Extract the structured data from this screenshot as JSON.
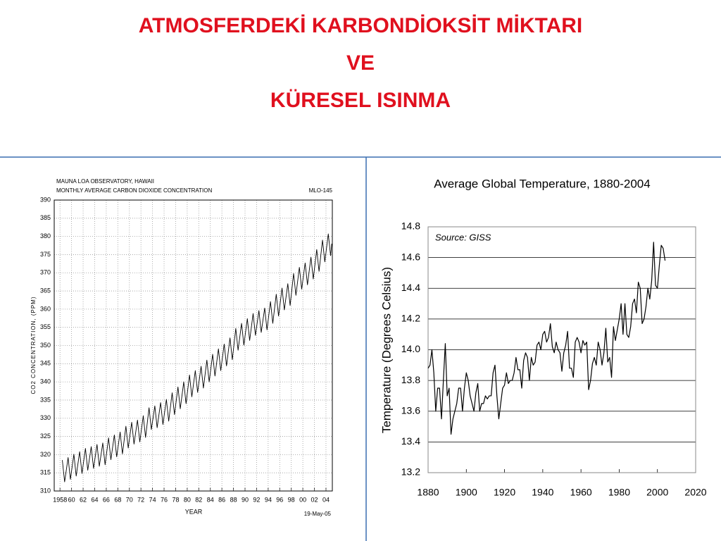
{
  "title": [
    "ATMOSFERDEKİ KARBONDİOKSİT MİKTARI",
    "VE",
    "KÜRESEL ISINMA"
  ],
  "chart_data": [
    {
      "type": "line",
      "title": "MAUNA LOA OBSERVATORY, HAWAII",
      "subtitle": "MONTHLY AVERAGE CARBON DIOXIDE CONCENTRATION",
      "annotations": [
        "MLO-145",
        "19-May-05"
      ],
      "xlabel": "YEAR",
      "ylabel": "CO2 CONCENTRATION, (PPM)",
      "color": "#000000",
      "grid": true,
      "xlim": [
        1957,
        2005.1
      ],
      "ylim": [
        310,
        390
      ],
      "yticks": [
        310,
        315,
        320,
        325,
        330,
        335,
        340,
        345,
        350,
        355,
        360,
        365,
        370,
        375,
        380,
        385,
        390
      ],
      "xticks": [
        1958,
        {
          "value": 1960,
          "label": "60"
        },
        {
          "value": 1962,
          "label": "62"
        },
        {
          "value": 1964,
          "label": "64"
        },
        {
          "value": 1966,
          "label": "66"
        },
        {
          "value": 1968,
          "label": "68"
        },
        {
          "value": 1970,
          "label": "70"
        },
        {
          "value": 1972,
          "label": "72"
        },
        {
          "value": 1974,
          "label": "74"
        },
        {
          "value": 1976,
          "label": "76"
        },
        {
          "value": 1978,
          "label": "78"
        },
        {
          "value": 1980,
          "label": "80"
        },
        {
          "value": 1982,
          "label": "82"
        },
        {
          "value": 1984,
          "label": "84"
        },
        {
          "value": 1986,
          "label": "86"
        },
        {
          "value": 1988,
          "label": "88"
        },
        {
          "value": 1990,
          "label": "90"
        },
        {
          "value": 1992,
          "label": "92"
        },
        {
          "value": 1994,
          "label": "94"
        },
        {
          "value": 1996,
          "label": "96"
        },
        {
          "value": 1998,
          "label": "98"
        },
        {
          "value": 2000,
          "label": "00"
        },
        {
          "value": 2002,
          "label": "02"
        },
        {
          "value": 2004,
          "label": "04"
        }
      ],
      "x": [
        1958.4,
        1958.8,
        1959.4,
        1959.8,
        1960.4,
        1960.8,
        1961.4,
        1961.8,
        1962.4,
        1962.8,
        1963.4,
        1963.8,
        1964.4,
        1964.8,
        1965.4,
        1965.8,
        1966.4,
        1966.8,
        1967.4,
        1967.8,
        1968.4,
        1968.8,
        1969.4,
        1969.8,
        1970.4,
        1970.8,
        1971.4,
        1971.8,
        1972.4,
        1972.8,
        1973.4,
        1973.8,
        1974.4,
        1974.8,
        1975.4,
        1975.8,
        1976.4,
        1976.8,
        1977.4,
        1977.8,
        1978.4,
        1978.8,
        1979.4,
        1979.8,
        1980.4,
        1980.8,
        1981.4,
        1981.8,
        1982.4,
        1982.8,
        1983.4,
        1983.8,
        1984.4,
        1984.8,
        1985.4,
        1985.8,
        1986.4,
        1986.8,
        1987.4,
        1987.8,
        1988.4,
        1988.8,
        1989.4,
        1989.8,
        1990.4,
        1990.8,
        1991.4,
        1991.8,
        1992.4,
        1992.8,
        1993.4,
        1993.8,
        1994.4,
        1994.8,
        1995.4,
        1995.8,
        1996.4,
        1996.8,
        1997.4,
        1997.8,
        1998.4,
        1998.8,
        1999.4,
        1999.8,
        2000.4,
        2000.8,
        2001.4,
        2001.8,
        2002.4,
        2002.8,
        2003.4,
        2003.8,
        2004.4,
        2004.8,
        2005.0
      ],
      "values": [
        318.5,
        312.5,
        319.2,
        313.2,
        320.1,
        314.1,
        320.8,
        314.8,
        321.7,
        315.7,
        322.2,
        316.2,
        322.8,
        316.8,
        323.2,
        317.2,
        324.6,
        318.6,
        325.4,
        319.4,
        326.2,
        320.2,
        327.8,
        321.8,
        328.9,
        322.9,
        329.5,
        323.5,
        330.7,
        324.7,
        332.9,
        326.9,
        333.4,
        327.4,
        334.3,
        328.3,
        335.2,
        329.2,
        337.0,
        331.0,
        338.6,
        332.6,
        340.0,
        334.0,
        341.9,
        335.9,
        343.1,
        337.1,
        344.3,
        338.3,
        346.0,
        340.0,
        347.6,
        341.6,
        349.1,
        343.1,
        350.4,
        344.4,
        352.1,
        346.1,
        354.7,
        348.7,
        356.1,
        350.1,
        357.4,
        351.4,
        358.8,
        352.8,
        359.6,
        353.6,
        360.3,
        354.3,
        362.1,
        356.1,
        364.1,
        358.1,
        365.8,
        359.8,
        367.0,
        361.0,
        369.8,
        363.8,
        371.5,
        365.5,
        372.7,
        366.7,
        374.3,
        368.3,
        376.4,
        370.4,
        379.0,
        373.0,
        380.7,
        374.7,
        378.0
      ]
    },
    {
      "type": "line",
      "title": "Average Global Temperature, 1880-2004",
      "annotations": [
        "Source: GISS"
      ],
      "ylabel": "Temperature (Degrees Celsius)",
      "color": "#000000",
      "grid": true,
      "xlim": [
        1880,
        2020
      ],
      "ylim": [
        13.2,
        14.8
      ],
      "xticks": [
        1880,
        1900,
        1920,
        1940,
        1960,
        1980,
        2000,
        2020
      ],
      "yticks": [
        13.2,
        13.4,
        13.6,
        13.8,
        {
          "value": 14,
          "label": "14.0"
        },
        14.2,
        14.4,
        14.6,
        14.8
      ],
      "x": [
        1880,
        1881,
        1882,
        1883,
        1884,
        1885,
        1886,
        1887,
        1888,
        1889,
        1890,
        1891,
        1892,
        1893,
        1894,
        1895,
        1896,
        1897,
        1898,
        1899,
        1900,
        1901,
        1902,
        1903,
        1904,
        1905,
        1906,
        1907,
        1908,
        1909,
        1910,
        1911,
        1912,
        1913,
        1914,
        1915,
        1916,
        1917,
        1918,
        1919,
        1920,
        1921,
        1922,
        1923,
        1924,
        1925,
        1926,
        1927,
        1928,
        1929,
        1930,
        1931,
        1932,
        1933,
        1934,
        1935,
        1936,
        1937,
        1938,
        1939,
        1940,
        1941,
        1942,
        1943,
        1944,
        1945,
        1946,
        1947,
        1948,
        1949,
        1950,
        1951,
        1952,
        1953,
        1954,
        1955,
        1956,
        1957,
        1958,
        1959,
        1960,
        1961,
        1962,
        1963,
        1964,
        1965,
        1966,
        1967,
        1968,
        1969,
        1970,
        1971,
        1972,
        1973,
        1974,
        1975,
        1976,
        1977,
        1978,
        1979,
        1980,
        1981,
        1982,
        1983,
        1984,
        1985,
        1986,
        1987,
        1988,
        1989,
        1990,
        1991,
        1992,
        1993,
        1994,
        1995,
        1996,
        1997,
        1998,
        1999,
        2000,
        2001,
        2002,
        2003,
        2004
      ],
      "values": [
        13.88,
        13.9,
        14.0,
        13.85,
        13.6,
        13.75,
        13.75,
        13.55,
        13.8,
        14.04,
        13.7,
        13.75,
        13.45,
        13.55,
        13.6,
        13.65,
        13.75,
        13.75,
        13.6,
        13.75,
        13.85,
        13.8,
        13.7,
        13.65,
        13.6,
        13.72,
        13.78,
        13.6,
        13.65,
        13.65,
        13.7,
        13.68,
        13.7,
        13.7,
        13.85,
        13.9,
        13.7,
        13.55,
        13.65,
        13.75,
        13.77,
        13.85,
        13.78,
        13.8,
        13.8,
        13.85,
        13.95,
        13.87,
        13.87,
        13.75,
        13.93,
        13.98,
        13.95,
        13.8,
        13.95,
        13.9,
        13.92,
        14.03,
        14.05,
        14.0,
        14.1,
        14.12,
        14.05,
        14.08,
        14.17,
        14.02,
        13.98,
        14.05,
        14.0,
        13.98,
        13.86,
        13.98,
        14.03,
        14.12,
        13.88,
        13.88,
        13.82,
        14.05,
        14.08,
        14.05,
        13.98,
        14.06,
        14.03,
        14.05,
        13.74,
        13.8,
        13.91,
        13.95,
        13.9,
        14.05,
        14.0,
        13.9,
        13.98,
        14.14,
        13.92,
        13.95,
        13.82,
        14.15,
        14.06,
        14.13,
        14.2,
        14.3,
        14.1,
        14.3,
        14.1,
        14.08,
        14.15,
        14.3,
        14.33,
        14.24,
        14.44,
        14.4,
        14.17,
        14.2,
        14.28,
        14.4,
        14.33,
        14.45,
        14.7,
        14.42,
        14.4,
        14.55,
        14.68,
        14.66,
        14.58
      ]
    }
  ]
}
